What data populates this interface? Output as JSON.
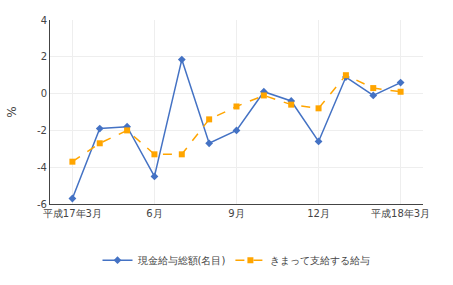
{
  "chart_data": {
    "type": "line",
    "ylabel": "%",
    "categories": [
      "平成17年3月",
      null,
      null,
      "6月",
      null,
      null,
      "9月",
      null,
      null,
      "12月",
      null,
      null,
      "平成18年3月"
    ],
    "series": [
      {
        "name": "現金給与総額(名目)",
        "color": "#4472c4",
        "marker": "diamond",
        "line_style": "solid",
        "values": [
          -5.7,
          -1.9,
          -1.8,
          -4.5,
          1.85,
          -2.7,
          -2.0,
          0.1,
          -0.4,
          -2.6,
          0.9,
          -0.1,
          0.6
        ]
      },
      {
        "name": "きまって支給する給与",
        "color": "#ffa500",
        "marker": "square",
        "line_style": "dashed",
        "values": [
          -3.7,
          -2.7,
          -2.0,
          -3.3,
          -3.3,
          -1.4,
          -0.7,
          -0.1,
          -0.6,
          -0.8,
          1.0,
          0.3,
          0.1
        ]
      }
    ],
    "ylim": [
      -6,
      4
    ],
    "yticks": [
      -6,
      -4,
      -2,
      0,
      2,
      4
    ],
    "grid": true,
    "legend": "bottom"
  }
}
